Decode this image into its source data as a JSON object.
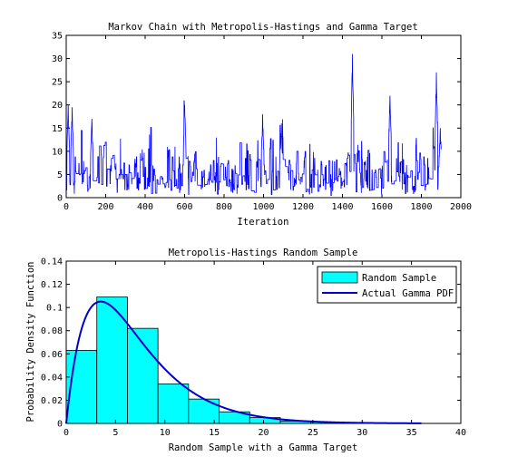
{
  "chart_data": [
    {
      "type": "line",
      "title": "Markov Chain with Metropolis-Hastings and Gamma Target",
      "xlabel": "Iteration",
      "ylabel": "",
      "xlim": [
        0,
        2000
      ],
      "ylim": [
        0,
        35
      ],
      "xticks": [
        0,
        200,
        400,
        600,
        800,
        1000,
        1200,
        1400,
        1600,
        1800,
        2000
      ],
      "yticks": [
        0,
        5,
        10,
        15,
        20,
        25,
        30,
        35
      ],
      "grid": false,
      "series": [
        {
          "color": "#0000ff",
          "n_points": 1900,
          "x_range": [
            0,
            1900
          ],
          "notable_peaks": [
            {
              "x": 10,
              "y": 20
            },
            {
              "x": 30,
              "y": 19.5
            },
            {
              "x": 130,
              "y": 17
            },
            {
              "x": 600,
              "y": 20
            },
            {
              "x": 995,
              "y": 18
            },
            {
              "x": 1090,
              "y": 16
            },
            {
              "x": 1450,
              "y": 31
            },
            {
              "x": 1640,
              "y": 22
            },
            {
              "x": 1875,
              "y": 27
            },
            {
              "x": 1895,
              "y": 15
            }
          ]
        }
      ]
    },
    {
      "type": "bar",
      "title": "Metropolis-Hastings Random Sample",
      "xlabel": "Random Sample with a Gamma Target",
      "ylabel": "Probability Density Function",
      "xlim": [
        0,
        40
      ],
      "ylim": [
        0,
        0.14
      ],
      "xticks": [
        0,
        5,
        10,
        15,
        20,
        25,
        30,
        35,
        40
      ],
      "yticks": [
        0,
        0.02,
        0.04,
        0.06,
        0.08,
        0.1,
        0.12,
        0.14
      ],
      "bin_edges": [
        0,
        3.1,
        6.2,
        9.3,
        12.4,
        15.5,
        18.6,
        21.7,
        24.8,
        27.9,
        31.0,
        34.1
      ],
      "values": [
        0.063,
        0.109,
        0.082,
        0.034,
        0.021,
        0.01,
        0.005,
        0.002,
        0.0012,
        0.0006,
        0.0003
      ],
      "bar_color": "#00ffff",
      "curve": {
        "shape": 2,
        "scale": 3.5,
        "x_range": [
          0,
          36
        ],
        "color": "#0000c8"
      },
      "legend": {
        "position": "top-right",
        "entries": [
          {
            "label": "Random Sample",
            "color": "#00ffff",
            "kind": "patch"
          },
          {
            "label": "Actual Gamma PDF",
            "color": "#0000c8",
            "kind": "line"
          }
        ]
      }
    }
  ]
}
